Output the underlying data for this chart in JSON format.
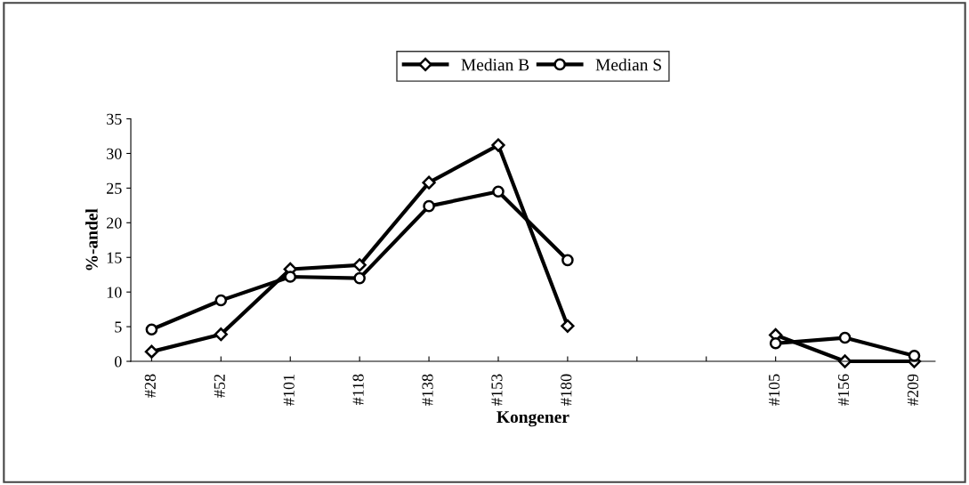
{
  "chart_data": {
    "type": "line",
    "xlabel": "Kongener",
    "ylabel": "%-andel",
    "categories": [
      "#28",
      "#52",
      "#101",
      "#118",
      "#138",
      "#153",
      "#180",
      null,
      null,
      "#105",
      "#156",
      "#209"
    ],
    "series": [
      {
        "name": "Median B",
        "color": "#000000",
        "marker": "diamond",
        "values": [
          1.4,
          3.9,
          13.3,
          13.9,
          25.8,
          31.2,
          5.1,
          null,
          null,
          3.8,
          0,
          0
        ]
      },
      {
        "name": "Median S",
        "color": "#000000",
        "marker": "circle",
        "values": [
          4.6,
          8.8,
          12.2,
          12.0,
          22.4,
          24.5,
          14.6,
          null,
          null,
          2.6,
          3.4,
          0.8
        ]
      }
    ],
    "ylim": [
      0,
      35
    ],
    "yticks": [
      0,
      5,
      10,
      15,
      20,
      25,
      30,
      35
    ],
    "grid": false,
    "legend": "top",
    "line_style": "solid"
  }
}
